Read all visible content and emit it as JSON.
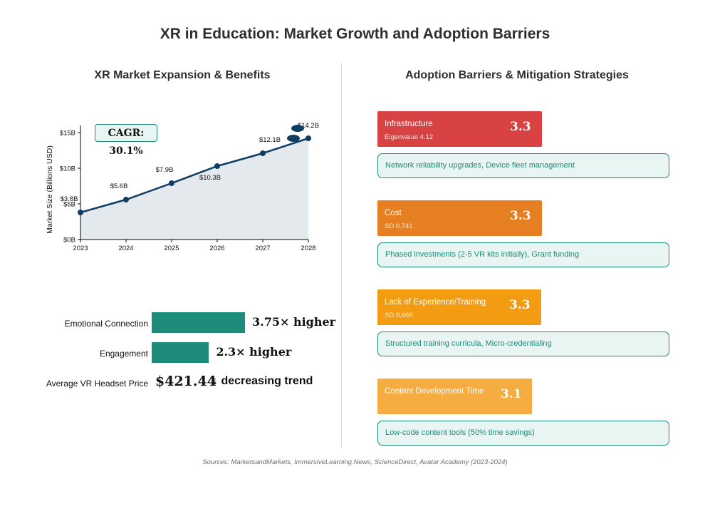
{
  "title": "XR in Education: Market Growth and Adoption Barriers",
  "left_panel": {
    "title": "XR Market Expansion & Benefits",
    "cagr_label": "CAGR: 30.1%",
    "benefits": [
      {
        "label": "Emotional Connection",
        "value": 3.75,
        "value_label": "3.75× higher"
      },
      {
        "label": "Engagement",
        "value": 2.3,
        "value_label": "2.3× higher"
      }
    ],
    "price": {
      "label": "Average VR Headset Price",
      "value": "$421.44",
      "trend": "↓ decreasing trend"
    }
  },
  "right_panel": {
    "title": "Adoption Barriers & Mitigation Strategies",
    "barriers": [
      {
        "name": "Infrastructure",
        "sub": "Eigenvalue 4.12",
        "score": "3.3",
        "color": "#d94242",
        "mitigation": "Network reliability upgrades, Device fleet management"
      },
      {
        "name": "Cost",
        "sub": "SD 0.741",
        "score": "3.3",
        "color": "#e67e22",
        "mitigation": "Phased investments (2-5 VR kits initially), Grant funding"
      },
      {
        "name": "Lack of Experience/Training",
        "sub": "SD 0.666",
        "score": "3.3",
        "color": "#f39c12",
        "mitigation": "Structured training curricula, Micro-credentialing"
      },
      {
        "name": "Content Development Time",
        "sub": "",
        "score": "3.1",
        "color": "#f5ad42",
        "mitigation": "Low-code content tools (50% time savings)"
      }
    ]
  },
  "sources": "Sources: MarketsandMarkets, ImmersiveLearning.News, ScienceDirect, Avatar Academy (2023-2024)",
  "chart_data": [
    {
      "type": "area",
      "title": "XR Market Expansion & Benefits",
      "ylabel": "Market Size (Billions USD)",
      "xlabel": "",
      "x": [
        2023,
        2024,
        2025,
        2026,
        2027,
        2028
      ],
      "values": [
        3.8,
        5.6,
        7.9,
        10.3,
        12.1,
        14.2
      ],
      "data_labels": [
        "$3.8B",
        "$5.6B",
        "$7.9B",
        "$10.3B",
        "$12.1B",
        "$14.2B"
      ],
      "xlim": [
        2023,
        2028
      ],
      "ylim": [
        0,
        16
      ],
      "y_ticks": [
        0,
        5,
        10,
        15
      ],
      "y_tick_labels": [
        "$0B",
        "$5B",
        "$10B",
        "$15B"
      ],
      "x_tick_labels": [
        "2023",
        "2024",
        "2025",
        "2026",
        "2027",
        "2028"
      ],
      "line_color": "#103d63",
      "fill_color": "#e4e9ee",
      "grid": false
    },
    {
      "type": "bar",
      "orientation": "horizontal",
      "categories": [
        "Emotional Connection",
        "Engagement"
      ],
      "values": [
        3.75,
        2.3
      ],
      "color": "#1e8c7a"
    }
  ]
}
